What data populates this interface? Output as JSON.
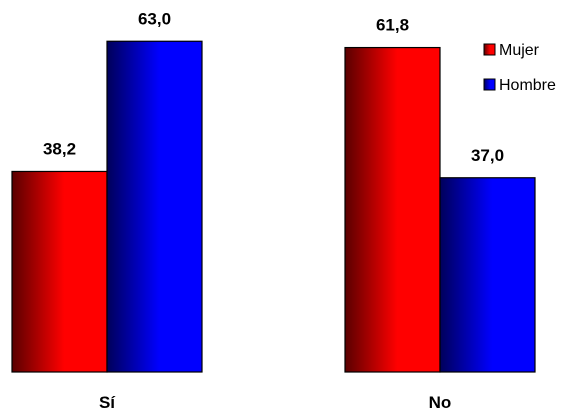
{
  "chart_data": {
    "type": "bar",
    "categories": [
      "Sí",
      "No"
    ],
    "series": [
      {
        "name": "Mujer",
        "values": [
          38.2,
          61.8
        ],
        "value_labels": [
          "38,2",
          "61,8"
        ],
        "color": "#ff0000",
        "color_dark": "#5a0000"
      },
      {
        "name": "Hombre",
        "values": [
          63.0,
          37.0
        ],
        "value_labels": [
          "63,0",
          "37,0"
        ],
        "color": "#0000ff",
        "color_dark": "#00005a"
      }
    ],
    "title": "",
    "xlabel": "",
    "ylabel": "",
    "ylim": [
      0,
      70
    ],
    "grid": false,
    "legend_position": "top-right"
  }
}
